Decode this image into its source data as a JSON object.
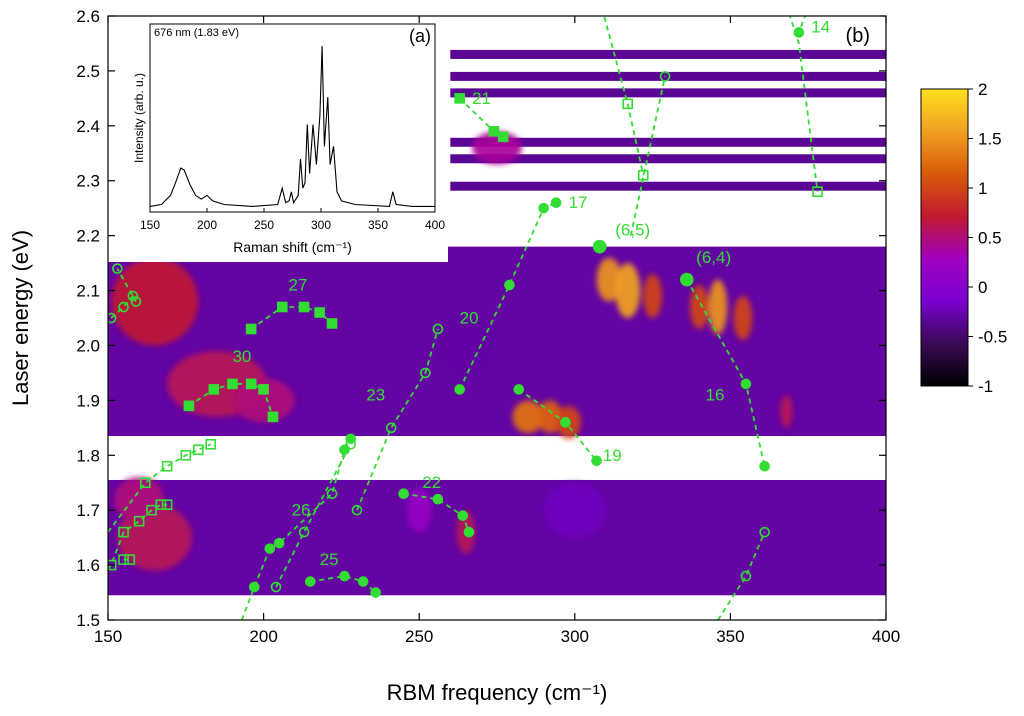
{
  "chart_data": {
    "type": "heatmap",
    "panel_label": "(b)",
    "xlabel": "RBM frequency (cm⁻¹)",
    "ylabel": "Laser energy (eV)",
    "xlim": [
      150,
      400
    ],
    "ylim": [
      1.5,
      2.6
    ],
    "xticks": [
      150,
      200,
      250,
      300,
      350,
      400
    ],
    "yticks": [
      1.5,
      1.6,
      1.7,
      1.8,
      1.9,
      2.0,
      2.1,
      2.2,
      2.3,
      2.4,
      2.5,
      2.6
    ],
    "map_bands": [
      [
        1.545,
        1.755
      ],
      [
        1.835,
        2.18
      ]
    ],
    "map_strips": [
      2.53,
      2.49,
      2.46,
      2.37,
      2.34,
      2.29
    ],
    "colorbar": {
      "min": -1,
      "max": 2,
      "ticks": [
        -1,
        -0.5,
        0,
        0.5,
        1,
        1.5,
        2
      ],
      "colormap": [
        "#000000",
        "#3a0a55",
        "#7a00d0",
        "#a000c0",
        "#c01a30",
        "#d85a0a",
        "#f0a020",
        "#ffe020"
      ]
    },
    "hot_spots": [
      {
        "x": 165,
        "y": 2.08,
        "v": 0.7,
        "sx": 14,
        "sy": 0.08
      },
      {
        "x": 185,
        "y": 1.93,
        "v": 0.6,
        "sx": 16,
        "sy": 0.06
      },
      {
        "x": 165,
        "y": 1.65,
        "v": 0.6,
        "sx": 12,
        "sy": 0.06
      },
      {
        "x": 200,
        "y": 1.9,
        "v": 0.5,
        "sx": 10,
        "sy": 0.04
      },
      {
        "x": 160,
        "y": 1.72,
        "v": 0.5,
        "sx": 8,
        "sy": 0.04
      },
      {
        "x": 285,
        "y": 1.87,
        "v": 1.3,
        "sx": 5,
        "sy": 0.03
      },
      {
        "x": 292,
        "y": 1.87,
        "v": 1.2,
        "sx": 4,
        "sy": 0.03
      },
      {
        "x": 298,
        "y": 1.86,
        "v": 1.0,
        "sx": 4,
        "sy": 0.03
      },
      {
        "x": 311,
        "y": 2.12,
        "v": 1.5,
        "sx": 4,
        "sy": 0.04
      },
      {
        "x": 317,
        "y": 2.1,
        "v": 1.6,
        "sx": 4,
        "sy": 0.05
      },
      {
        "x": 325,
        "y": 2.09,
        "v": 1.0,
        "sx": 3,
        "sy": 0.04
      },
      {
        "x": 340,
        "y": 2.07,
        "v": 1.0,
        "sx": 3,
        "sy": 0.04
      },
      {
        "x": 346,
        "y": 2.07,
        "v": 1.5,
        "sx": 3,
        "sy": 0.05
      },
      {
        "x": 354,
        "y": 2.05,
        "v": 1.0,
        "sx": 3,
        "sy": 0.04
      },
      {
        "x": 265,
        "y": 1.66,
        "v": 0.6,
        "sx": 3,
        "sy": 0.04
      },
      {
        "x": 250,
        "y": 1.7,
        "v": 0.2,
        "sx": 4,
        "sy": 0.04
      },
      {
        "x": 275,
        "y": 2.36,
        "v": 0.4,
        "sx": 8,
        "sy": 0.03
      },
      {
        "x": 368,
        "y": 1.88,
        "v": 0.6,
        "sx": 2,
        "sy": 0.03
      },
      {
        "x": 300,
        "y": 1.7,
        "v": -0.2,
        "sx": 10,
        "sy": 0.05
      },
      {
        "x": 265,
        "y": 2.0,
        "v": -0.3,
        "sx": 8,
        "sy": 0.05
      }
    ],
    "curves": [
      {
        "label": "14",
        "marker": "filled-circle",
        "points": [
          [
            372,
            2.57
          ]
        ],
        "dash_extra": [
          [
            378,
            2.63
          ],
          [
            374,
            2.6
          ]
        ]
      },
      {
        "label": "21",
        "marker": "filled-square",
        "points": [
          [
            263,
            2.45
          ],
          [
            274,
            2.39
          ],
          [
            277,
            2.38
          ]
        ],
        "dash_extra": []
      },
      {
        "label": "",
        "marker": "open-square",
        "points": [
          [
            378,
            2.28
          ]
        ],
        "dash_extra": [
          [
            368,
            2.62
          ],
          [
            372,
            2.55
          ]
        ]
      },
      {
        "label": "",
        "marker": "open-square",
        "points": [
          [
            317,
            2.44
          ],
          [
            322,
            2.31
          ]
        ],
        "dash_extra": [
          [
            308,
            2.63
          ]
        ]
      },
      {
        "label": "",
        "marker": "open-circle",
        "points": [
          [
            329,
            2.49
          ]
        ],
        "dash_extra": [
          [
            318,
            2.2
          ]
        ]
      },
      {
        "label": "17",
        "marker": "filled-circle",
        "points": [
          [
            308,
            2.18
          ]
        ],
        "dash_extra": []
      },
      {
        "label": "(6,5)",
        "marker": "filled-circle",
        "points": [
          [
            308,
            2.18
          ]
        ],
        "dash_extra": []
      },
      {
        "label": "(6,4)",
        "marker": "filled-circle",
        "points": [
          [
            336,
            2.12
          ],
          [
            355,
            1.93
          ],
          [
            361,
            1.78
          ]
        ],
        "dash_extra": []
      },
      {
        "label": "16",
        "marker": "open-circle",
        "points": [],
        "dash_extra": []
      },
      {
        "label": "20",
        "marker": "filled-circle",
        "points": [
          [
            263,
            1.92
          ],
          [
            279,
            2.11
          ],
          [
            290,
            2.25
          ],
          [
            294,
            2.26
          ]
        ],
        "dash_extra": []
      },
      {
        "label": "19",
        "marker": "filled-circle",
        "points": [
          [
            282,
            1.92
          ],
          [
            297,
            1.86
          ],
          [
            307,
            1.79
          ]
        ],
        "dash_extra": []
      },
      {
        "label": "27",
        "marker": "filled-square",
        "points": [
          [
            196,
            2.03
          ],
          [
            206,
            2.07
          ],
          [
            213,
            2.07
          ],
          [
            218,
            2.06
          ],
          [
            222,
            2.04
          ]
        ],
        "dash_extra": []
      },
      {
        "label": "30",
        "marker": "filled-square",
        "points": [
          [
            176,
            1.89
          ],
          [
            184,
            1.92
          ],
          [
            190,
            1.93
          ],
          [
            196,
            1.93
          ],
          [
            200,
            1.92
          ],
          [
            203,
            1.87
          ]
        ],
        "dash_extra": []
      },
      {
        "label": "23",
        "marker": "open-circle",
        "points": [
          [
            230,
            1.7
          ],
          [
            241,
            1.85
          ],
          [
            252,
            1.95
          ],
          [
            256,
            2.03
          ]
        ],
        "dash_extra": []
      },
      {
        "label": "26",
        "marker": "mixed-circle",
        "points": [
          [
            197,
            1.56
          ],
          [
            202,
            1.63
          ],
          [
            205,
            1.64
          ],
          [
            222,
            1.73
          ],
          [
            226,
            1.81
          ],
          [
            228,
            1.83
          ]
        ],
        "dash_extra": [
          [
            193,
            1.5
          ]
        ]
      },
      {
        "label": "",
        "marker": "open-circle",
        "points": [
          [
            204,
            1.56
          ],
          [
            213,
            1.66
          ],
          [
            228,
            1.82
          ]
        ],
        "dash_extra": []
      },
      {
        "label": "22",
        "marker": "filled-circle",
        "points": [
          [
            245,
            1.73
          ],
          [
            256,
            1.72
          ],
          [
            264,
            1.69
          ],
          [
            266,
            1.66
          ]
        ],
        "dash_extra": []
      },
      {
        "label": "25",
        "marker": "filled-circle",
        "points": [
          [
            215,
            1.57
          ],
          [
            226,
            1.58
          ],
          [
            232,
            1.57
          ],
          [
            236,
            1.55
          ]
        ],
        "dash_extra": []
      },
      {
        "label": "",
        "marker": "open-circle",
        "points": [
          [
            355,
            1.58
          ],
          [
            361,
            1.66
          ]
        ],
        "dash_extra": [
          [
            346,
            1.5
          ]
        ]
      },
      {
        "label": "",
        "marker": "open-square",
        "points": [
          [
            151,
            1.6
          ],
          [
            155,
            1.66
          ],
          [
            160,
            1.68
          ],
          [
            164,
            1.7
          ],
          [
            167,
            1.71
          ],
          [
            169,
            1.71
          ]
        ],
        "dash_extra": [
          [
            148,
            1.58
          ]
        ]
      },
      {
        "label": "",
        "marker": "open-square",
        "points": [
          [
            155,
            1.61
          ],
          [
            157,
            1.61
          ]
        ],
        "dash_extra": []
      },
      {
        "label": "",
        "marker": "open-square",
        "points": [
          [
            162,
            1.75
          ],
          [
            169,
            1.78
          ],
          [
            175,
            1.8
          ],
          [
            179,
            1.81
          ],
          [
            183,
            1.82
          ]
        ],
        "dash_extra": [
          [
            150,
            1.66
          ]
        ]
      },
      {
        "label": "",
        "marker": "open-circle",
        "points": [
          [
            151,
            2.05
          ],
          [
            155,
            2.07
          ],
          [
            158,
            2.09
          ],
          [
            159,
            2.08
          ],
          [
            153,
            2.14
          ]
        ],
        "dash_extra": []
      }
    ],
    "labels": [
      {
        "text": "14",
        "x": 376,
        "y": 2.57
      },
      {
        "text": "21",
        "x": 267,
        "y": 2.44
      },
      {
        "text": "17",
        "x": 298,
        "y": 2.25
      },
      {
        "text": "(6,5)",
        "x": 313,
        "y": 2.2
      },
      {
        "text": "(6,4)",
        "x": 339,
        "y": 2.15
      },
      {
        "text": "20",
        "x": 263,
        "y": 2.04
      },
      {
        "text": "27",
        "x": 208,
        "y": 2.1
      },
      {
        "text": "30",
        "x": 190,
        "y": 1.97
      },
      {
        "text": "23",
        "x": 233,
        "y": 1.9
      },
      {
        "text": "16",
        "x": 342,
        "y": 1.9
      },
      {
        "text": "19",
        "x": 309,
        "y": 1.79
      },
      {
        "text": "22",
        "x": 251,
        "y": 1.74
      },
      {
        "text": "26",
        "x": 209,
        "y": 1.69
      },
      {
        "text": "25",
        "x": 218,
        "y": 1.6
      }
    ]
  },
  "inset": {
    "panel_label": "(a)",
    "annotation": "676 nm (1.83 eV)",
    "xlabel": "Raman shift (cm⁻¹)",
    "ylabel": "Intensity (arb. u.)",
    "xlim": [
      150,
      400
    ],
    "xticks": [
      150,
      200,
      250,
      300,
      350,
      400
    ],
    "spectrum": [
      [
        150,
        0.02
      ],
      [
        160,
        0.03
      ],
      [
        168,
        0.08
      ],
      [
        173,
        0.16
      ],
      [
        177,
        0.23
      ],
      [
        180,
        0.22
      ],
      [
        185,
        0.14
      ],
      [
        190,
        0.08
      ],
      [
        195,
        0.06
      ],
      [
        200,
        0.08
      ],
      [
        205,
        0.05
      ],
      [
        215,
        0.03
      ],
      [
        240,
        0.02
      ],
      [
        262,
        0.03
      ],
      [
        266,
        0.12
      ],
      [
        269,
        0.04
      ],
      [
        272,
        0.05
      ],
      [
        274,
        0.1
      ],
      [
        276,
        0.04
      ],
      [
        280,
        0.08
      ],
      [
        282,
        0.28
      ],
      [
        284,
        0.12
      ],
      [
        286,
        0.15
      ],
      [
        288,
        0.47
      ],
      [
        290,
        0.2
      ],
      [
        293,
        0.47
      ],
      [
        296,
        0.25
      ],
      [
        299,
        0.52
      ],
      [
        301,
        0.9
      ],
      [
        303,
        0.35
      ],
      [
        306,
        0.62
      ],
      [
        308,
        0.25
      ],
      [
        311,
        0.35
      ],
      [
        314,
        0.1
      ],
      [
        318,
        0.05
      ],
      [
        330,
        0.03
      ],
      [
        360,
        0.02
      ],
      [
        363,
        0.1
      ],
      [
        366,
        0.03
      ],
      [
        380,
        0.02
      ],
      [
        400,
        0.02
      ]
    ]
  }
}
